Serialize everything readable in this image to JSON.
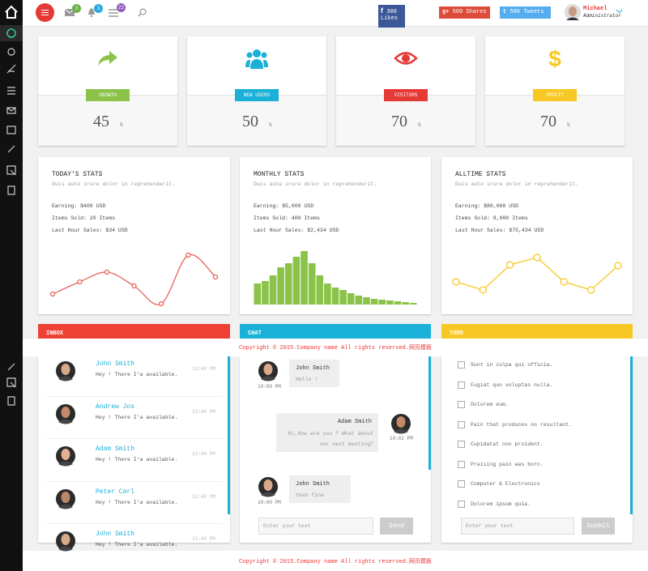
{
  "header": {
    "badges": [
      3,
      3,
      22
    ],
    "facebook": {
      "count": 300,
      "label": "Likes"
    },
    "google": {
      "count": 500,
      "label": "Shares"
    },
    "twitter": {
      "count": 500,
      "label": "Tweets"
    },
    "user": {
      "name": "Michael",
      "role": "Administrator"
    }
  },
  "cards": [
    {
      "label": "GROWTH",
      "value": 45,
      "unit": "%"
    },
    {
      "label": "NEW USERS",
      "value": 50,
      "unit": "%"
    },
    {
      "label": "VISITORS",
      "value": 70,
      "unit": "%"
    },
    {
      "label": "PROFIT",
      "value": 70,
      "unit": "%"
    }
  ],
  "stats": [
    {
      "title": "TODAY'S STATS",
      "subtitle": "Duis aute irure dolor in reprehenderit.",
      "lines": [
        "Earning: $400 USD",
        "Items Sold: 20 Items",
        "Last Hour Sales: $34 USD"
      ]
    },
    {
      "title": "MONTHLY STATS",
      "subtitle": "Duis aute irure dolor in reprehenderit.",
      "lines": [
        "Earning: $5,000 USD",
        "Items Sold: 400 Items",
        "Last Hour Sales: $2,434 USD"
      ]
    },
    {
      "title": "ALLTIME STATS",
      "subtitle": "Duis aute irure dolor in reprehenderit.",
      "lines": [
        "Earning: $80,000 USD",
        "Items Sold: 8,000 Items",
        "Last Hour Sales: $75,434 USD"
      ]
    }
  ],
  "chart_data": [
    {
      "type": "line",
      "color": "#e8615a",
      "smooth": true,
      "values": [
        22,
        37,
        49,
        32,
        10,
        70,
        43
      ]
    },
    {
      "type": "bar",
      "color": "#8bc34a",
      "values": [
        26,
        29,
        36,
        46,
        51,
        59,
        66,
        51,
        36,
        26,
        21,
        18,
        14,
        11,
        9,
        7,
        6,
        5,
        4,
        3,
        2
      ]
    },
    {
      "type": "line",
      "color": "#f7c824",
      "smooth": false,
      "values": [
        37,
        27,
        58,
        67,
        37,
        27,
        57
      ]
    }
  ],
  "panels": {
    "inbox": {
      "title": "INBOX",
      "items": [
        {
          "name": "John Smith",
          "message": "Hey ! There I'a available.",
          "time": "13:40 PM"
        },
        {
          "name": "Andrew Jos",
          "message": "Hey ! There I'a available.",
          "time": "13:40 PM"
        },
        {
          "name": "Adam Smith",
          "message": "Hey ! There I'a available.",
          "time": "13:40 PM"
        },
        {
          "name": "Peter Carl",
          "message": "Hey ! There I'a available.",
          "time": "13:40 PM"
        },
        {
          "name": "John Smith",
          "message": "Hey ! There I'a available.",
          "time": "13:40 PM"
        }
      ]
    },
    "chat": {
      "title": "CHAT",
      "messages": [
        {
          "name": "John Smith",
          "text": "Hello !",
          "time": "10:00 PM"
        },
        {
          "name": "Adam Smith",
          "text": "Hi,How are you ? What about our next meeting?",
          "time": "10:02 PM"
        },
        {
          "name": "John Smith",
          "text": "Yeah fine",
          "time": "10:00 PM"
        }
      ],
      "placeholder": "Enter your text",
      "button": "Send"
    },
    "todo": {
      "title": "TODO",
      "items": [
        "Sunt in culpa qui officia.",
        "Fugiat quo voluptas nulla.",
        "Dolorem eum.",
        "Pain that produces no resultant.",
        "Cupidatat non proident.",
        "Praising pain was born.",
        "Computer & Electronics",
        "Dolorem ipsum quia."
      ],
      "placeholder": "Enter your text",
      "button": "Submit"
    }
  },
  "footer": {
    "text": "Copyright © 2015.Company name All rights reserved.",
    "link": "网页模板"
  }
}
